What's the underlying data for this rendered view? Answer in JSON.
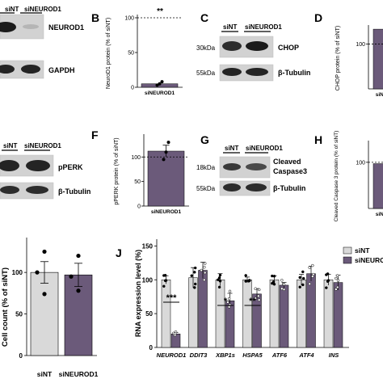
{
  "panels": {
    "A": {
      "lane_labels": [
        "siNT",
        "siNEUROD1"
      ],
      "bands": [
        "NEUROD1",
        "GAPDH"
      ]
    },
    "B": {
      "letter": "B",
      "ylabel": "NeuroD1 protein (% of siNT)",
      "yticks": [
        "0",
        "50",
        "100"
      ],
      "significance": "**",
      "xlabel": "siNEUROD1"
    },
    "C": {
      "letter": "C",
      "lane_labels": [
        "siNT",
        "siNEUROD1"
      ],
      "size_markers": [
        "30kDa",
        "55kDa"
      ],
      "bands": [
        "CHOP",
        "β-Tubulin"
      ]
    },
    "D": {
      "letter": "D",
      "ylabel": "CHOP protein (% of siNT)",
      "yticks": [
        "100"
      ],
      "xlabel": "siNE"
    },
    "E": {
      "lane_labels": [
        "siNT",
        "siNEUROD1"
      ],
      "bands": [
        "pPERK",
        "β-Tubulin"
      ]
    },
    "F": {
      "letter": "F",
      "ylabel": "pPERK protein (% of siNT)",
      "yticks": [
        "0",
        "50",
        "100"
      ],
      "xlabel": "siNEUROD1"
    },
    "G": {
      "letter": "G",
      "lane_labels": [
        "siNT",
        "siNEUROD1"
      ],
      "size_markers": [
        "18kDa",
        "55kDa"
      ],
      "bands": [
        "Cleaved",
        "Caspase3",
        "β-Tubulin"
      ]
    },
    "H": {
      "letter": "H",
      "ylabel": "Cleaved Caspase 3 protein (% of siNT)",
      "yticks": [
        "100"
      ],
      "xlabel": "siNE"
    },
    "I": {
      "ylabel": "Cell count (% of siNT)",
      "yticks": [
        "0",
        "50",
        "100"
      ],
      "categories": [
        "siNT",
        "siNEUROD1"
      ]
    },
    "J": {
      "letter": "J",
      "ylabel": "RNA expression level (%)",
      "yticks": [
        "0",
        "50",
        "100",
        "150"
      ],
      "legend": [
        "siNT",
        "siNEURO"
      ]
    }
  },
  "chart_data": [
    {
      "type": "bar",
      "panel": "B",
      "categories": [
        "siNEUROD1"
      ],
      "values": [
        5
      ],
      "points": [
        3,
        5,
        8
      ],
      "reference_line": 100,
      "ylim": [
        0,
        100
      ],
      "colors": [
        "#6b5a7a"
      ]
    },
    {
      "type": "bar",
      "panel": "D",
      "categories": [
        "siNE"
      ],
      "values": [
        133
      ],
      "reference_line": 100,
      "ylim": [
        0,
        135
      ],
      "colors": [
        "#6b5a7a"
      ]
    },
    {
      "type": "bar",
      "panel": "F",
      "categories": [
        "siNEUROD1"
      ],
      "values": [
        112
      ],
      "error": [
        12
      ],
      "points": [
        95,
        110,
        130
      ],
      "reference_line": 100,
      "ylim": [
        0,
        140
      ],
      "colors": [
        "#6b5a7a"
      ]
    },
    {
      "type": "bar",
      "panel": "H",
      "categories": [
        "siNE"
      ],
      "values": [
        97
      ],
      "reference_line": 100,
      "ylim": [
        0,
        140
      ],
      "colors": [
        "#6b5a7a"
      ]
    },
    {
      "type": "bar",
      "panel": "I",
      "categories": [
        "siNT",
        "siNEUROD1"
      ],
      "values": [
        100,
        97
      ],
      "error": [
        13,
        14
      ],
      "points": [
        [
          125,
          100,
          74
        ],
        [
          120,
          95,
          78
        ]
      ],
      "ylim": [
        0,
        140
      ],
      "colors": [
        "#d9d9d9",
        "#6b5a7a"
      ]
    },
    {
      "type": "bar",
      "panel": "J",
      "categories": [
        "NEUROD1",
        "DDIT3",
        "XBP1s",
        "HSPA5",
        "ATF6",
        "ATF4",
        "INS"
      ],
      "series": [
        {
          "name": "siNT",
          "values": [
            100,
            103,
            100,
            100,
            100,
            100,
            100
          ],
          "error": [
            6,
            15,
            9,
            4,
            6,
            8,
            8
          ]
        },
        {
          "name": "siNEURO",
          "values": [
            20,
            114,
            69,
            79,
            92,
            109,
            96
          ],
          "error": [
            2,
            12,
            11,
            8,
            4,
            11,
            11
          ]
        }
      ],
      "significance": [
        "***",
        "",
        "*",
        "**",
        "",
        "",
        ""
      ],
      "ylim": [
        0,
        160
      ],
      "colors": [
        "#d9d9d9",
        "#6b5a7a"
      ]
    }
  ]
}
